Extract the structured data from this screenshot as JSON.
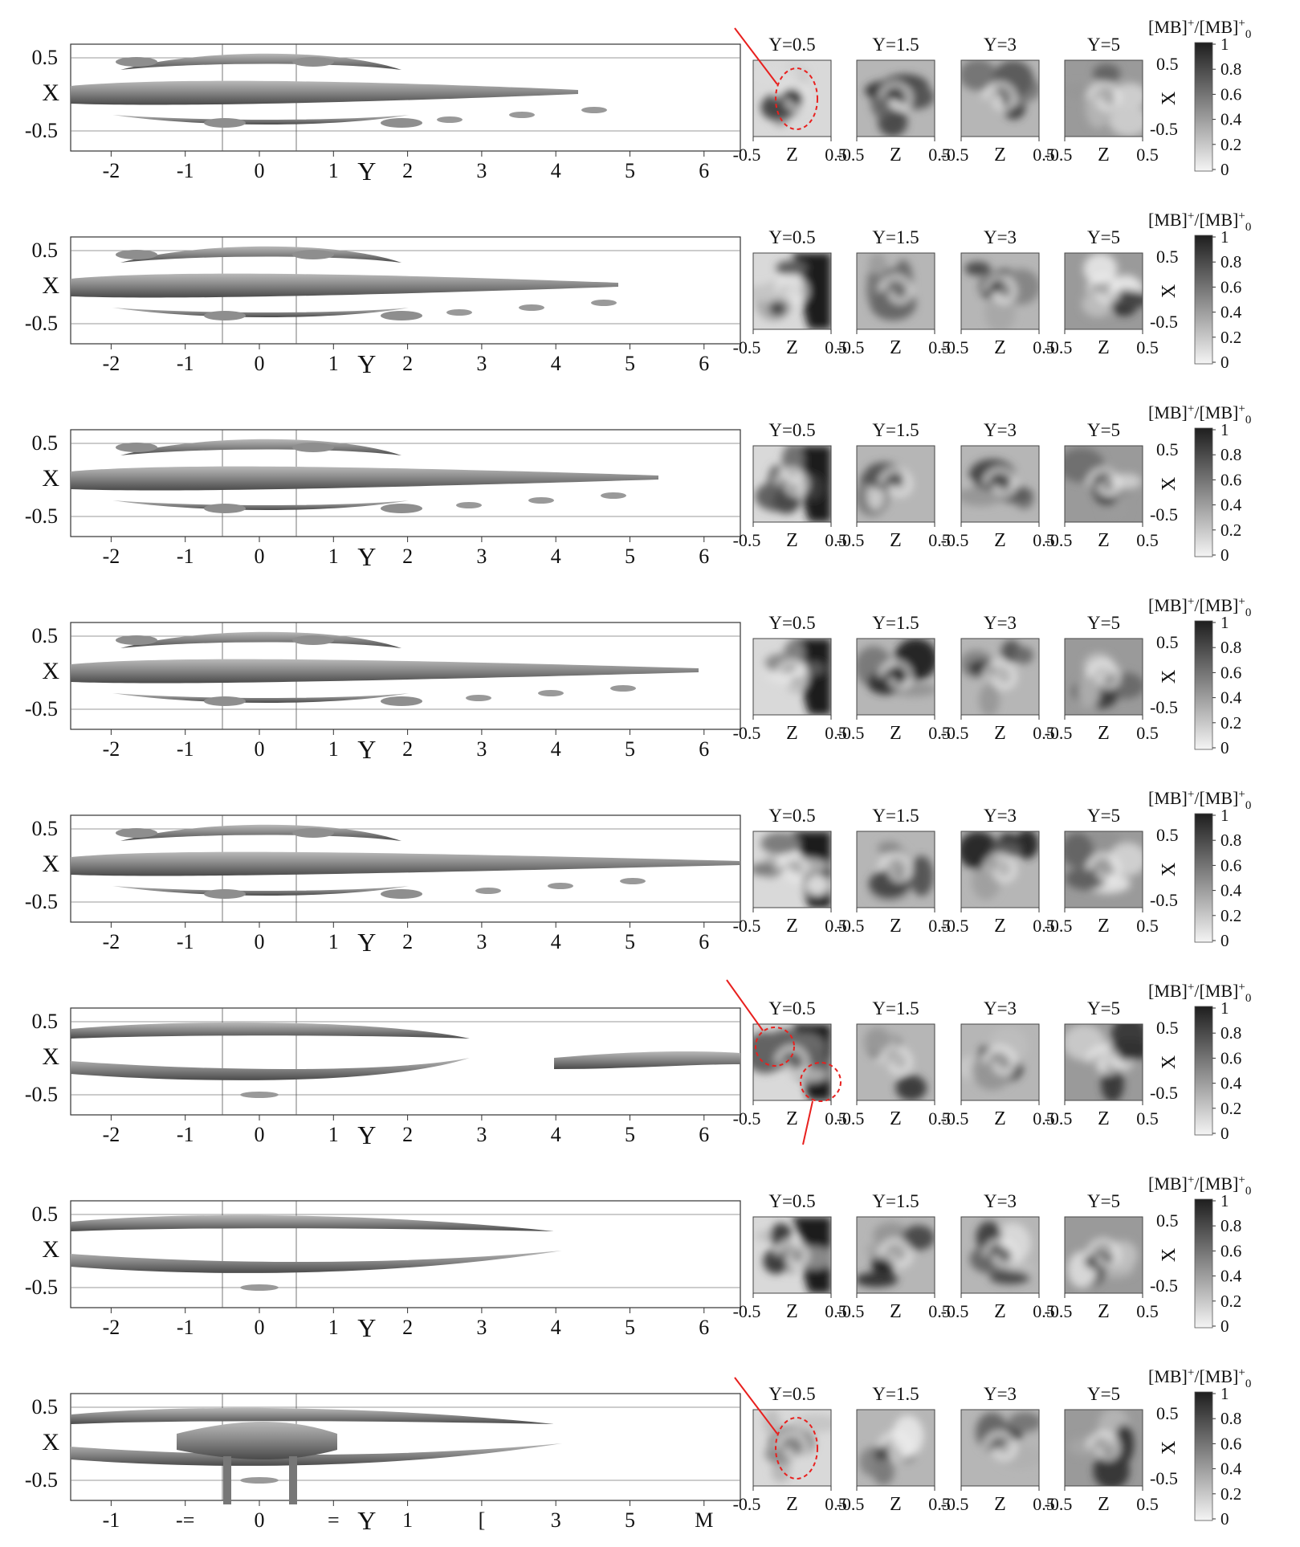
{
  "figure": {
    "row_count": 8,
    "iso_axes": {
      "x_ticks": [
        -2,
        -1,
        0,
        1,
        2,
        3,
        4,
        5,
        6
      ],
      "x_label": "Y",
      "y_ticks": [
        "0.5",
        "X",
        "-0.5"
      ],
      "last_row_x_tick_labels": [
        "-1",
        "-=",
        "0",
        "=",
        "1",
        "[",
        "3",
        "5",
        "M"
      ]
    },
    "slice_columns": [
      "Y=0.5",
      "Y=1.5",
      "Y=3",
      "Y=5"
    ],
    "slice_axis": {
      "left": "-0.5",
      "label": "Z",
      "right": "0.5"
    },
    "side_axis": {
      "top": "0.5",
      "label": "X",
      "bottom": "-0.5"
    },
    "colorbar": {
      "title_main": "[MB]",
      "title_sup": "+",
      "title_sub": "0",
      "ticks": [
        "1",
        "0.8",
        "0.6",
        "0.4",
        "0.2",
        "0"
      ],
      "colors": {
        "high": "#1e1e1e",
        "low": "#f4f4f4"
      }
    },
    "annotation_color": "#e8201e"
  }
}
